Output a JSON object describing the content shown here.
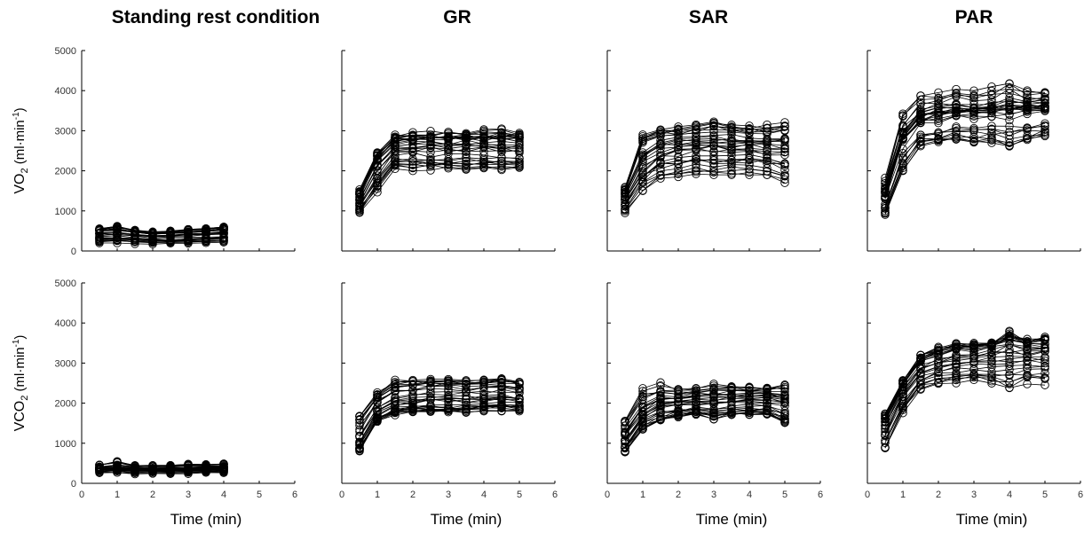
{
  "figure": {
    "columns": [
      {
        "id": "rest",
        "title": "Standing rest condition",
        "xmax_data": 4
      },
      {
        "id": "gr",
        "title": "GR",
        "xmax_data": 5
      },
      {
        "id": "sar",
        "title": "SAR",
        "xmax_data": 5
      },
      {
        "id": "par",
        "title": "PAR",
        "xmax_data": 5
      }
    ],
    "rows": [
      {
        "id": "vo2",
        "ylabel_main": "VO",
        "ylabel_sub": "2",
        "ylabel_unit": " (ml·min",
        "ylabel_exp": "-1",
        "ylabel_close": ")"
      },
      {
        "id": "vco2",
        "ylabel_main": "VCO",
        "ylabel_sub": "2",
        "ylabel_unit": " (ml·min",
        "ylabel_exp": "-1",
        "ylabel_close": ")"
      }
    ],
    "xlabel": "Time (min)",
    "x_ticks": [
      "0",
      "1",
      "2",
      "3",
      "4",
      "5",
      "6"
    ],
    "y_ticks": [
      "0",
      "1000",
      "2000",
      "3000",
      "4000",
      "5000"
    ]
  },
  "chart_data": [
    {
      "type": "line",
      "panel": "VO2 - Standing rest condition",
      "xlim": [
        0,
        6
      ],
      "ylim": [
        0,
        5000
      ],
      "x": [
        0.5,
        1,
        1.5,
        2,
        2.5,
        3,
        3.5,
        4
      ],
      "envelope": {
        "min": [
          200,
          200,
          180,
          170,
          180,
          190,
          200,
          200
        ],
        "mean": [
          380,
          370,
          340,
          320,
          330,
          350,
          370,
          380
        ],
        "max": [
          560,
          620,
          520,
          480,
          500,
          540,
          560,
          600
        ]
      },
      "subjects": 30
    },
    {
      "type": "line",
      "panel": "VO2 - GR",
      "xlim": [
        0,
        6
      ],
      "ylim": [
        0,
        5000
      ],
      "x": [
        0.5,
        1,
        1.5,
        2,
        2.5,
        3,
        3.5,
        4,
        4.5,
        5
      ],
      "envelope": {
        "min": [
          950,
          1450,
          2050,
          2000,
          2000,
          2000,
          2000,
          2000,
          2000,
          2000
        ],
        "mean": [
          1300,
          2200,
          2650,
          2700,
          2700,
          2700,
          2700,
          2700,
          2700,
          2650
        ],
        "max": [
          1650,
          2700,
          3050,
          3100,
          3100,
          3100,
          3100,
          3150,
          3250,
          3150
        ]
      },
      "subjects": 30
    },
    {
      "type": "line",
      "panel": "VO2 - SAR",
      "xlim": [
        0,
        6
      ],
      "ylim": [
        0,
        5000
      ],
      "x": [
        0.5,
        1,
        1.5,
        2,
        2.5,
        3,
        3.5,
        4,
        4.5,
        5
      ],
      "envelope": {
        "min": [
          950,
          1500,
          1800,
          1850,
          1900,
          1900,
          1900,
          1900,
          1900,
          1700
        ],
        "mean": [
          1300,
          2100,
          2400,
          2500,
          2550,
          2550,
          2550,
          2550,
          2500,
          2500
        ],
        "max": [
          1600,
          3000,
          3100,
          3100,
          3150,
          3250,
          3150,
          3150,
          3150,
          3250
        ]
      },
      "subjects": 30
    },
    {
      "type": "line",
      "panel": "VO2 - PAR",
      "xlim": [
        0,
        6
      ],
      "ylim": [
        0,
        5000
      ],
      "x": [
        0.5,
        1,
        1.5,
        2,
        2.5,
        3,
        3.5,
        4,
        4.5,
        5
      ],
      "envelope": {
        "min": [
          900,
          2000,
          2600,
          2650,
          2700,
          2700,
          2700,
          2600,
          2700,
          2800
        ],
        "mean": [
          1400,
          2800,
          3300,
          3400,
          3450,
          3450,
          3500,
          3550,
          3550,
          3600
        ],
        "max": [
          1850,
          3500,
          3950,
          4000,
          4100,
          4000,
          4100,
          4250,
          4050,
          4000
        ]
      },
      "subjects": 30
    },
    {
      "type": "line",
      "panel": "VCO2 - Standing rest condition",
      "xlim": [
        0,
        6
      ],
      "ylim": [
        0,
        5000
      ],
      "x": [
        0.5,
        1,
        1.5,
        2,
        2.5,
        3,
        3.5,
        4
      ],
      "envelope": {
        "min": [
          250,
          250,
          230,
          230,
          240,
          240,
          250,
          250
        ],
        "mean": [
          380,
          380,
          360,
          350,
          360,
          360,
          370,
          380
        ],
        "max": [
          500,
          620,
          500,
          480,
          480,
          520,
          520,
          520
        ]
      },
      "subjects": 30
    },
    {
      "type": "line",
      "panel": "VCO2 - GR",
      "xlim": [
        0,
        6
      ],
      "ylim": [
        0,
        5000
      ],
      "x": [
        0.5,
        1,
        1.5,
        2,
        2.5,
        3,
        3.5,
        4,
        4.5,
        5
      ],
      "envelope": {
        "min": [
          800,
          1500,
          1700,
          1750,
          1750,
          1750,
          1750,
          1800,
          1800,
          1800
        ],
        "mean": [
          1200,
          1900,
          2150,
          2200,
          2250,
          2250,
          2250,
          2250,
          2300,
          2250
        ],
        "max": [
          1850,
          2350,
          2650,
          2650,
          2650,
          2700,
          2650,
          2650,
          2700,
          2600
        ]
      },
      "subjects": 30
    },
    {
      "type": "line",
      "panel": "VCO2 - SAR",
      "xlim": [
        0,
        6
      ],
      "ylim": [
        0,
        5000
      ],
      "x": [
        0.5,
        1,
        1.5,
        2,
        2.5,
        3,
        3.5,
        4,
        4.5,
        5
      ],
      "envelope": {
        "min": [
          780,
          1350,
          1550,
          1650,
          1700,
          1600,
          1700,
          1700,
          1700,
          1500
        ],
        "mean": [
          1100,
          1700,
          1950,
          2000,
          2050,
          2050,
          2100,
          2100,
          2100,
          2050
        ],
        "max": [
          1750,
          2500,
          2600,
          2450,
          2500,
          2550,
          2550,
          2500,
          2500,
          2550
        ]
      },
      "subjects": 30
    },
    {
      "type": "line",
      "panel": "VCO2 - PAR",
      "xlim": [
        0,
        6
      ],
      "ylim": [
        0,
        5000
      ],
      "x": [
        0.5,
        1,
        1.5,
        2,
        2.5,
        3,
        3.5,
        4,
        4.5,
        5
      ],
      "envelope": {
        "min": [
          800,
          1700,
          2300,
          2450,
          2500,
          2500,
          2450,
          2250,
          2450,
          2450
        ],
        "mean": [
          1250,
          2200,
          2700,
          2850,
          2950,
          3000,
          3050,
          3100,
          3100,
          3100
        ],
        "max": [
          1750,
          2600,
          3200,
          3400,
          3500,
          3500,
          3550,
          3800,
          3600,
          3650
        ]
      },
      "subjects": 30
    }
  ]
}
